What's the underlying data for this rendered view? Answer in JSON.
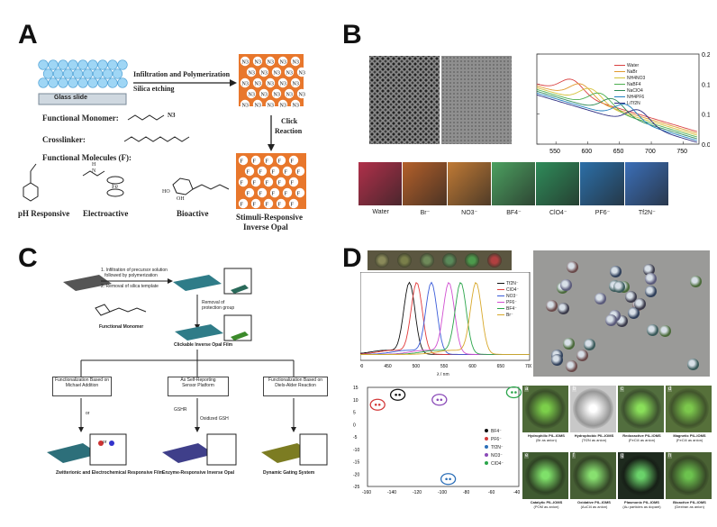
{
  "panels": {
    "A": {
      "letter": "A",
      "glass_slide": "Glass slide",
      "step1": "Infiltration and Polymerization",
      "step2": "Silica etching",
      "click": "Click",
      "reaction": "Reaction",
      "functional_monomer": "Functional Monomer:",
      "crosslinker": "Crosslinker:",
      "functional_molecules": "Functional  Molecules (F):",
      "n3": "N3",
      "f": "F",
      "fe": "Fe",
      "sugar_oh": "OH",
      "cap_ph": "pH Responsive",
      "cap_electro": "Electroactive",
      "cap_bio": "Bioactive",
      "cap_result_1": "Stimuli-Responsive",
      "cap_result_2": "Inverse Opal",
      "monomer_n3": "N3",
      "amide_h": "H",
      "amide_n": "N",
      "ho": "HO",
      "oh": "OH"
    },
    "B": {
      "letter": "B",
      "legend": [
        "Water",
        "NaBr",
        "NH4NO3",
        "NaBF4",
        "NaClO4",
        "NH4PF6",
        "LiTf2N"
      ],
      "legend_colors": [
        "#d94040",
        "#e09a2e",
        "#d4c23a",
        "#4caf50",
        "#2e8b57",
        "#1f7fbf",
        "#2a2a80"
      ],
      "y_ticks": [
        "0.20",
        "0.15",
        "0.10",
        "0.05"
      ],
      "x_ticks": [
        "550",
        "600",
        "650",
        "700",
        "750"
      ],
      "ylim": [
        0.05,
        0.2
      ],
      "xlim": [
        520,
        775
      ],
      "swatch_labels": [
        "Water",
        "Br⁻",
        "NO3⁻",
        "BF4⁻",
        "ClO4⁻",
        "PF6⁻",
        "Tf2N⁻"
      ],
      "swatch_colors": [
        "#b0304a",
        "#b4602a",
        "#c07a35",
        "#4ca060",
        "#2f8c5a",
        "#2c6fa8",
        "#3b6fb8"
      ]
    },
    "C": {
      "letter": "C",
      "step1": "1. Infiltration of precursor solution\n   followed by polymerization",
      "step2": "2. Removal of silica template",
      "removal": "Removal of\nprotection group",
      "functional_monomer": "Functional Monomer",
      "clickable": "Clickable Inverse Opal Film",
      "branch1": "Functionalization Based on\nMichael Addition",
      "branch2": "As Self-Reporting\nSensor Platform",
      "branch3": "Functionalization Based on\nDiels-Alder Reaction",
      "gshr": "GSHR",
      "oxidized": "Oxidized GSH",
      "or1": "or",
      "or2": "or",
      "res1": "Zwitterionic and Electrochemical  Responsive Film",
      "res2": "Enzyme-Responsive Inverse Opal",
      "res3": "Dynamic Gating System"
    },
    "D": {
      "letter": "D",
      "spectra_legend": [
        "Tf2N⁻",
        "ClO4⁻",
        "NO3⁻",
        "PF6⁻",
        "BF4⁻",
        "Br⁻"
      ],
      "spectra_colors": [
        "#111111",
        "#e23b3b",
        "#3a5bd9",
        "#d14fd1",
        "#2aa54a",
        "#d8a82a"
      ],
      "spectra_peaks": [
        487,
        500,
        526,
        557,
        578,
        605
      ],
      "spectra_xlim": [
        400,
        700
      ],
      "spectra_xticks": [
        "400",
        "450",
        "500",
        "550",
        "600",
        "650",
        "700"
      ],
      "spectra_xlabel": "λ / nm",
      "scatter_legend": [
        "BF4⁻",
        "PF6⁻",
        "Tf2N⁻",
        "NO3⁻",
        "ClO4⁻"
      ],
      "scatter_colors": [
        "#111111",
        "#d33a3a",
        "#2c6fb8",
        "#8a4ab8",
        "#2aa54a"
      ],
      "scatter_xticks": [
        "-160",
        "-140",
        "-120",
        "-100",
        "-80",
        "-60",
        "-40"
      ],
      "scatter_yticks": [
        "15",
        "10",
        "5",
        "0",
        "-5",
        "-10",
        "-15",
        "-20",
        "-25"
      ],
      "scatter_xlim": [
        -160,
        -40
      ],
      "scatter_ylim": [
        -25,
        15
      ],
      "clusters": [
        {
          "label": "BF4⁻",
          "x": -136,
          "y": 12,
          "color": "#111111"
        },
        {
          "label": "PF6⁻",
          "x": -152,
          "y": 8,
          "color": "#d33a3a"
        },
        {
          "label": "Tf2N⁻",
          "x": -96,
          "y": -22,
          "color": "#2c6fb8"
        },
        {
          "label": "NO3⁻",
          "x": -103,
          "y": 10,
          "color": "#8a4ab8"
        },
        {
          "label": "ClO4⁻",
          "x": -44,
          "y": 13,
          "color": "#2aa54a"
        }
      ],
      "micro": [
        {
          "tag": "a",
          "cap1": "Hydrophilic PIL-IOMS",
          "cap2": "(Br as anion)",
          "bg": "#4e6a38",
          "dot": "#7ccf4a"
        },
        {
          "tag": "b",
          "cap1": "Hydrophobic PIL-IOMS",
          "cap2": "(Tf2N as anion)",
          "bg": "#c8c8c8",
          "dot": "#ffffff"
        },
        {
          "tag": "c",
          "cap1": "Redoxactive PIL-IOMS",
          "cap2": "(FeCl4 as anion)",
          "bg": "#526e3e",
          "dot": "#8ae05a"
        },
        {
          "tag": "d",
          "cap1": "Magnetic PIL-IOMS",
          "cap2": "(FeCl4 as anion)",
          "bg": "#56703a",
          "dot": "#7cc84c"
        },
        {
          "tag": "e",
          "cap1": "Catalytic PIL-IOMS",
          "cap2": "(POM as anion)",
          "bg": "#3f5a30",
          "dot": "#7fe06a"
        },
        {
          "tag": "f",
          "cap1": "Oxidative PIL-IOMS",
          "cap2": "(AuCl4 as anion)",
          "bg": "#465e34",
          "dot": "#88e070"
        },
        {
          "tag": "g",
          "cap1": "Plasmonic PIL-IOMS",
          "cap2": "(Au particles as dopant)",
          "bg": "#1e2a1e",
          "dot": "#6ad26a"
        },
        {
          "tag": "h",
          "cap1": "Bioactive PIL-IOMS",
          "cap2": "(Dextran as anion)",
          "bg": "#4a6234",
          "dot": "#6cc24e"
        }
      ]
    }
  }
}
